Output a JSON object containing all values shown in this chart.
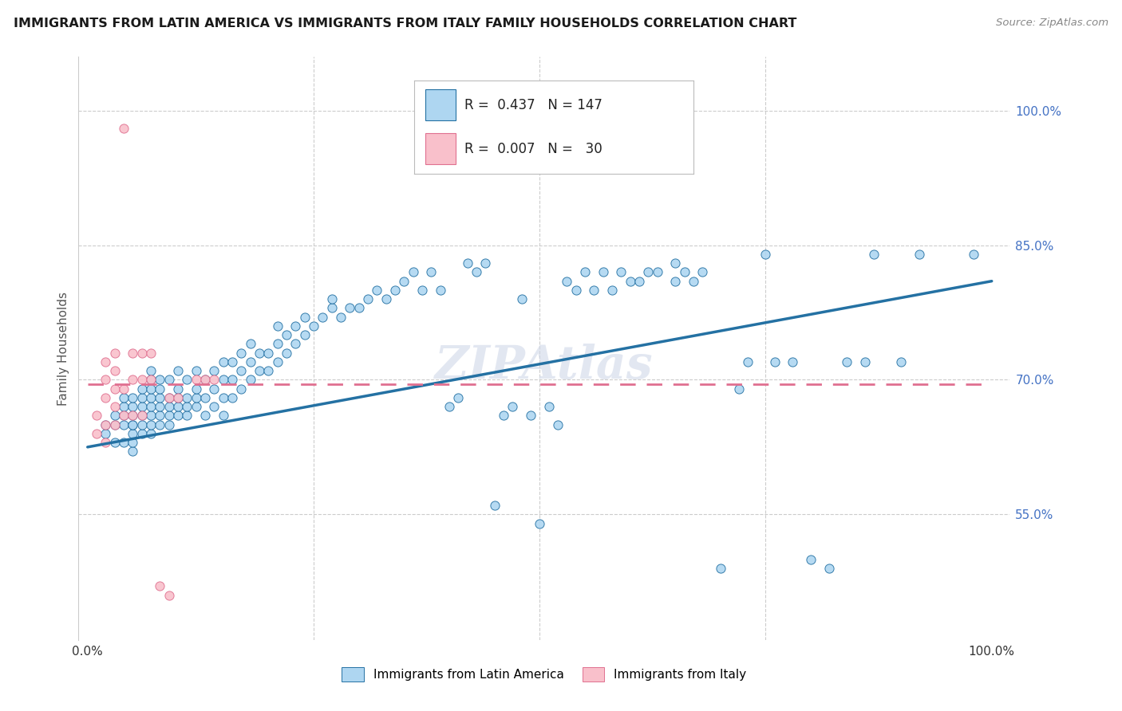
{
  "title": "IMMIGRANTS FROM LATIN AMERICA VS IMMIGRANTS FROM ITALY FAMILY HOUSEHOLDS CORRELATION CHART",
  "source": "Source: ZipAtlas.com",
  "ylabel": "Family Households",
  "color_blue": "#AED6F1",
  "color_pink": "#F9C0CB",
  "line_blue": "#2471A3",
  "line_pink": "#E07090",
  "watermark": "ZIPAtlas",
  "blue_x": [
    0.02,
    0.02,
    0.03,
    0.03,
    0.03,
    0.04,
    0.04,
    0.04,
    0.04,
    0.04,
    0.05,
    0.05,
    0.05,
    0.05,
    0.05,
    0.05,
    0.05,
    0.05,
    0.06,
    0.06,
    0.06,
    0.06,
    0.06,
    0.06,
    0.07,
    0.07,
    0.07,
    0.07,
    0.07,
    0.07,
    0.07,
    0.07,
    0.08,
    0.08,
    0.08,
    0.08,
    0.08,
    0.08,
    0.09,
    0.09,
    0.09,
    0.09,
    0.09,
    0.1,
    0.1,
    0.1,
    0.1,
    0.1,
    0.11,
    0.11,
    0.11,
    0.11,
    0.12,
    0.12,
    0.12,
    0.12,
    0.13,
    0.13,
    0.13,
    0.14,
    0.14,
    0.14,
    0.15,
    0.15,
    0.15,
    0.15,
    0.16,
    0.16,
    0.16,
    0.17,
    0.17,
    0.17,
    0.18,
    0.18,
    0.18,
    0.19,
    0.19,
    0.2,
    0.2,
    0.21,
    0.21,
    0.21,
    0.22,
    0.22,
    0.23,
    0.23,
    0.24,
    0.24,
    0.25,
    0.26,
    0.27,
    0.27,
    0.28,
    0.29,
    0.3,
    0.31,
    0.32,
    0.33,
    0.34,
    0.35,
    0.36,
    0.37,
    0.38,
    0.39,
    0.4,
    0.41,
    0.42,
    0.43,
    0.44,
    0.45,
    0.46,
    0.47,
    0.48,
    0.49,
    0.5,
    0.51,
    0.52,
    0.53,
    0.54,
    0.55,
    0.56,
    0.57,
    0.58,
    0.59,
    0.6,
    0.61,
    0.62,
    0.63,
    0.65,
    0.65,
    0.66,
    0.67,
    0.68,
    0.7,
    0.72,
    0.73,
    0.75,
    0.76,
    0.78,
    0.8,
    0.82,
    0.84,
    0.86,
    0.87,
    0.9,
    0.92,
    0.98
  ],
  "blue_y": [
    0.64,
    0.65,
    0.63,
    0.65,
    0.66,
    0.63,
    0.65,
    0.66,
    0.67,
    0.68,
    0.62,
    0.63,
    0.64,
    0.65,
    0.65,
    0.66,
    0.67,
    0.68,
    0.64,
    0.65,
    0.66,
    0.67,
    0.68,
    0.69,
    0.64,
    0.65,
    0.66,
    0.67,
    0.68,
    0.69,
    0.7,
    0.71,
    0.65,
    0.66,
    0.67,
    0.68,
    0.69,
    0.7,
    0.65,
    0.66,
    0.67,
    0.68,
    0.7,
    0.66,
    0.67,
    0.68,
    0.69,
    0.71,
    0.66,
    0.67,
    0.68,
    0.7,
    0.67,
    0.68,
    0.69,
    0.71,
    0.66,
    0.68,
    0.7,
    0.67,
    0.69,
    0.71,
    0.66,
    0.68,
    0.7,
    0.72,
    0.68,
    0.7,
    0.72,
    0.69,
    0.71,
    0.73,
    0.7,
    0.72,
    0.74,
    0.71,
    0.73,
    0.71,
    0.73,
    0.72,
    0.74,
    0.76,
    0.73,
    0.75,
    0.74,
    0.76,
    0.75,
    0.77,
    0.76,
    0.77,
    0.78,
    0.79,
    0.77,
    0.78,
    0.78,
    0.79,
    0.8,
    0.79,
    0.8,
    0.81,
    0.82,
    0.8,
    0.82,
    0.8,
    0.67,
    0.68,
    0.83,
    0.82,
    0.83,
    0.56,
    0.66,
    0.67,
    0.79,
    0.66,
    0.54,
    0.67,
    0.65,
    0.81,
    0.8,
    0.82,
    0.8,
    0.82,
    0.8,
    0.82,
    0.81,
    0.81,
    0.82,
    0.82,
    0.81,
    0.83,
    0.82,
    0.81,
    0.82,
    0.49,
    0.69,
    0.72,
    0.84,
    0.72,
    0.72,
    0.5,
    0.49,
    0.72,
    0.72,
    0.84,
    0.72,
    0.84,
    0.84
  ],
  "pink_x": [
    0.01,
    0.01,
    0.02,
    0.02,
    0.02,
    0.02,
    0.02,
    0.03,
    0.03,
    0.03,
    0.03,
    0.03,
    0.04,
    0.04,
    0.04,
    0.05,
    0.05,
    0.05,
    0.06,
    0.06,
    0.06,
    0.07,
    0.07,
    0.08,
    0.09,
    0.09,
    0.1,
    0.12,
    0.13,
    0.14
  ],
  "pink_y": [
    0.64,
    0.66,
    0.63,
    0.65,
    0.68,
    0.7,
    0.72,
    0.65,
    0.67,
    0.69,
    0.71,
    0.73,
    0.66,
    0.69,
    0.98,
    0.66,
    0.7,
    0.73,
    0.66,
    0.7,
    0.73,
    0.7,
    0.73,
    0.47,
    0.68,
    0.46,
    0.68,
    0.7,
    0.7,
    0.7
  ],
  "blue_line_x": [
    0.0,
    1.0
  ],
  "blue_line_y": [
    0.625,
    0.81
  ],
  "pink_line_y": 0.695,
  "yticks": [
    0.55,
    0.7,
    0.85,
    1.0
  ],
  "ytick_labels": [
    "55.0%",
    "70.0%",
    "85.0%",
    "100.0%"
  ],
  "ylim": [
    0.41,
    1.06
  ],
  "xlim": [
    -0.01,
    1.02
  ]
}
